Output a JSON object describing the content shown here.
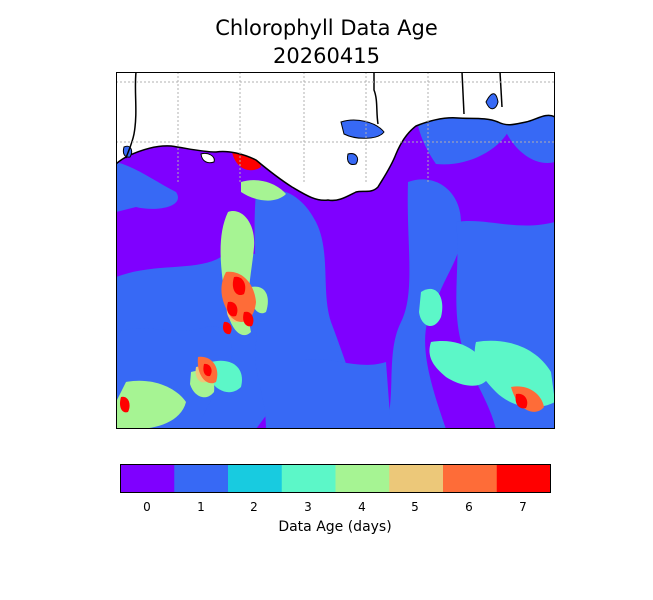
{
  "title_line1": "Chlorophyll Data Age",
  "title_line2": "20260415",
  "colorbar": {
    "label": "Data Age (days)",
    "ticks": [
      "0",
      "1",
      "2",
      "3",
      "4",
      "5",
      "6",
      "7"
    ],
    "colors": [
      "#7f00ff",
      "#3769f5",
      "#18cbe0",
      "#5cf7c8",
      "#a6f493",
      "#ecc879",
      "#fe6c38",
      "#ff0000"
    ]
  },
  "map": {
    "land_color": "#ffffff",
    "coast_color": "#000000",
    "grid": "dotted gray"
  }
}
